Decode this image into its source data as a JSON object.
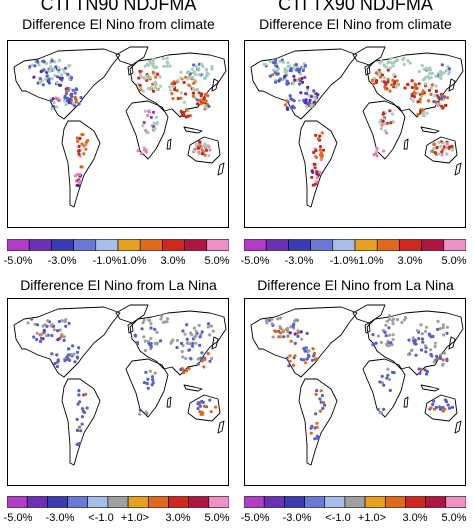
{
  "panels": [
    {
      "id": "tl",
      "title": "CTI TN90 NDJFMA",
      "subtitle": "Difference El Nino from climate",
      "variant": "climate",
      "ticks": [
        "-5.0%",
        "-3.0%",
        "-1.0%",
        "1.0%",
        "3.0%",
        "5.0%"
      ]
    },
    {
      "id": "tr",
      "title": "CTI TX90 NDJFMA",
      "subtitle": "Difference El Nino from climate",
      "variant": "climate",
      "ticks": [
        "-5.0%",
        "-3.0%",
        "-1.0%",
        "1.0%",
        "3.0%",
        "5.0%"
      ]
    },
    {
      "id": "bl",
      "title": "",
      "subtitle": "Difference El Nino from La Nina",
      "variant": "lanina",
      "ticks": [
        "-5.0%",
        "-3.0%",
        "<-1.0",
        "+1.0>",
        "3.0%",
        "5.0%"
      ]
    },
    {
      "id": "br",
      "title": "",
      "subtitle": "Difference El Nino from La Nina",
      "variant": "lanina",
      "ticks": [
        "-5.0%",
        "-3.0%",
        "<-1.0",
        "+1.0>",
        "3.0%",
        "5.0%"
      ]
    }
  ],
  "legend_colors": {
    "climate": [
      "#b23cc8",
      "#6b2fb8",
      "#3a3ab4",
      "#6a78d8",
      "#a8bdea",
      "#e8a020",
      "#e06a1a",
      "#d0281e",
      "#b01440",
      "#f090c8"
    ],
    "lanina": [
      "#b23cc8",
      "#6b2fb8",
      "#3a3ab4",
      "#6a78d8",
      "#a8bdea",
      "#a0a0a0",
      "#e8a020",
      "#e06a1a",
      "#d0281e",
      "#b01440",
      "#f090c8"
    ]
  },
  "neutral_color": {
    "climate": "#a8ccb8",
    "lanina": "#a0a0a0"
  }
}
